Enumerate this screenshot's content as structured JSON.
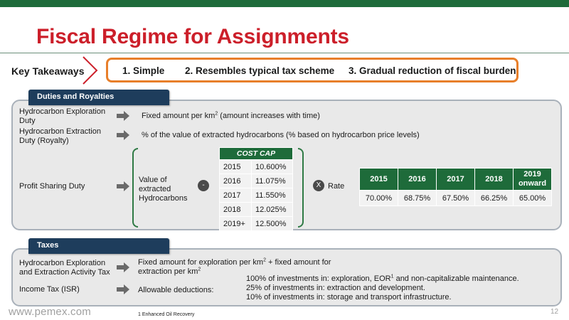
{
  "title": "Fiscal Regime for Assignments",
  "key_takeaways": {
    "label": "Key Takeaways",
    "items": [
      "1.  Simple",
      "2.  Resembles typical tax scheme",
      "3.  Gradual reduction of fiscal burden"
    ],
    "border_color": "#e87f2a"
  },
  "duties": {
    "tab_label": "Duties and Royalties",
    "exploration": {
      "label_line1": "Hydrocarbon Exploration",
      "label_line2": "Duty",
      "desc_before": "Fixed amount per km",
      "desc_sup": "2",
      "desc_after": " (amount increases with time)"
    },
    "extraction": {
      "label_line1": "Hydrocarbon Extraction",
      "label_line2": "Duty (Royalty)",
      "desc": "% of the value of extracted hydrocarbons (% based on hydrocarbon price levels)"
    },
    "profit_sharing": {
      "label": "Profit Sharing Duty",
      "value_line1": "Value of",
      "value_line2": "extracted",
      "value_line3": "Hydrocarbons",
      "minus": "-",
      "times": "X",
      "rate_label": "Rate",
      "cost_cap": {
        "header": "COST CAP",
        "rows": [
          {
            "year": "2015",
            "pct": "10.600%"
          },
          {
            "year": "2016",
            "pct": "11.075%"
          },
          {
            "year": "2017",
            "pct": "11.550%"
          },
          {
            "year": "2018",
            "pct": "12.025%"
          },
          {
            "year": "2019+",
            "pct": "12.500%"
          }
        ]
      },
      "rate_table": {
        "headers": [
          "2015",
          "2016",
          "2017",
          "2018",
          "2019 onward"
        ],
        "values": [
          "70.00%",
          "68.75%",
          "67.50%",
          "66.25%",
          "65.00%"
        ]
      }
    }
  },
  "taxes": {
    "tab_label": "Taxes",
    "activity": {
      "label_line1": "Hydrocarbon Exploration",
      "label_line2": "and Extraction Activity Tax",
      "desc_line1_before": "Fixed amount for exploration per km",
      "desc_line1_sup": "2",
      "desc_line1_after": " + fixed amount for",
      "desc_line2_before": "extraction per km",
      "desc_line2_sup": "2"
    },
    "income_tax": {
      "label": "Income Tax (ISR)",
      "deductions_label": "Allowable deductions:",
      "deduction1_before": "100% of investments in: exploration, EOR",
      "deduction1_sup": "1",
      "deduction1_after": " and non-capitalizable maintenance.",
      "deduction2": "25% of investments in: extraction and development.",
      "deduction3": "10% of investments in: storage and transport infrastructure."
    }
  },
  "footer": {
    "url": "www.pemex.com",
    "footnote": "1 Enhanced Oil Recovery",
    "page": "12"
  },
  "colors": {
    "brand_green": "#1e6b3a",
    "title_red": "#cc1f2a",
    "tab_navy": "#1e3d5c",
    "panel_gray": "#e9e9e9"
  }
}
